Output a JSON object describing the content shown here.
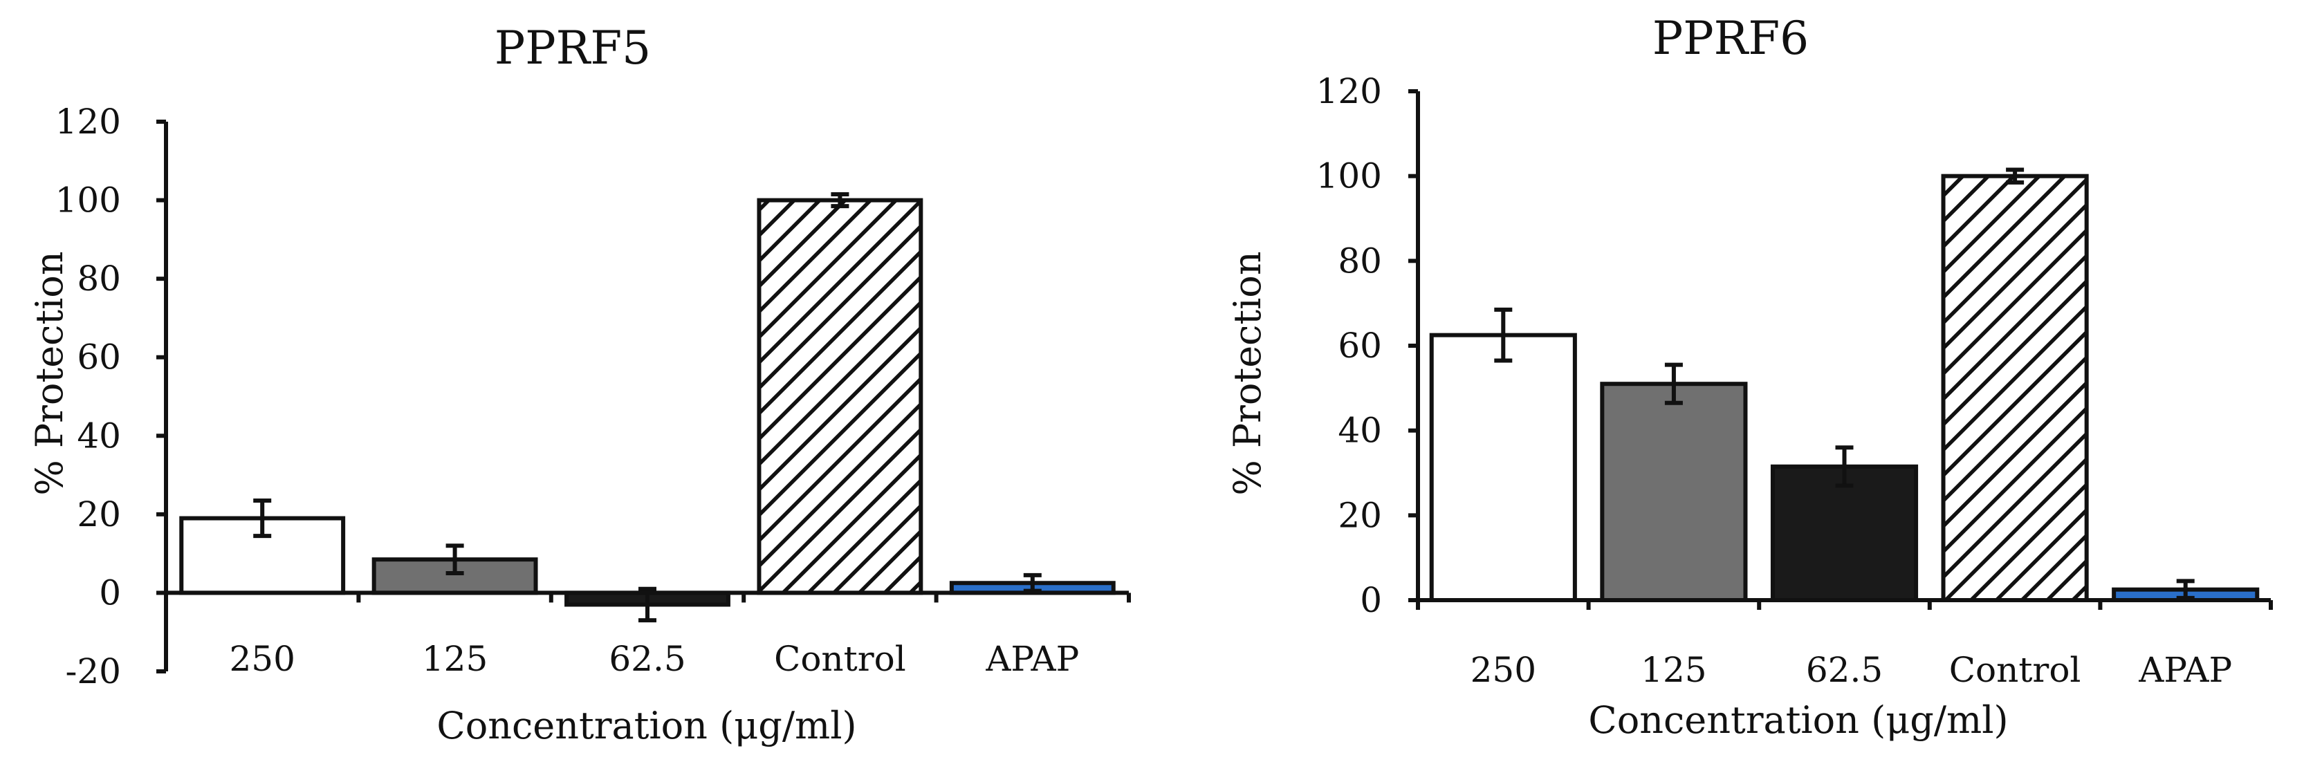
{
  "chart_data": [
    {
      "id": "pprf5",
      "type": "bar",
      "title": "PPRF5",
      "xlabel": "Concentration (μg/ml)",
      "ylabel": "% Protection",
      "ylim": [
        -20,
        120
      ],
      "yticks": [
        -20,
        0,
        20,
        40,
        60,
        80,
        100,
        120
      ],
      "ytick_labels": [
        "-20",
        "0",
        "20",
        "40",
        "60",
        "80",
        "100",
        "120"
      ],
      "grid": false,
      "categories": [
        "250",
        "125",
        "62.5",
        "Control",
        "APAP"
      ],
      "values": [
        19,
        8.5,
        -3,
        100,
        2.5
      ],
      "errors": [
        4.5,
        3.5,
        4,
        1.5,
        2
      ],
      "fills": [
        "#ffffff",
        "#707070",
        "#1a1a1a",
        "hatch",
        "#2a6fc9"
      ]
    },
    {
      "id": "pprf6",
      "type": "bar",
      "title": "PPRF6",
      "xlabel": "Concentration (μg/ml)",
      "ylabel": "% Protection",
      "ylim": [
        0,
        120
      ],
      "yticks": [
        0,
        20,
        40,
        60,
        80,
        100,
        120
      ],
      "ytick_labels": [
        "0",
        "20",
        "40",
        "60",
        "80",
        "100",
        "120"
      ],
      "grid": false,
      "categories": [
        "250",
        "125",
        "62.5",
        "Control",
        "APAP"
      ],
      "values": [
        62.5,
        51,
        31.5,
        100,
        2.5
      ],
      "errors": [
        6,
        4.5,
        4.5,
        1.5,
        2
      ],
      "fills": [
        "#ffffff",
        "#707070",
        "#1a1a1a",
        "hatch",
        "#2a6fc9"
      ]
    }
  ]
}
